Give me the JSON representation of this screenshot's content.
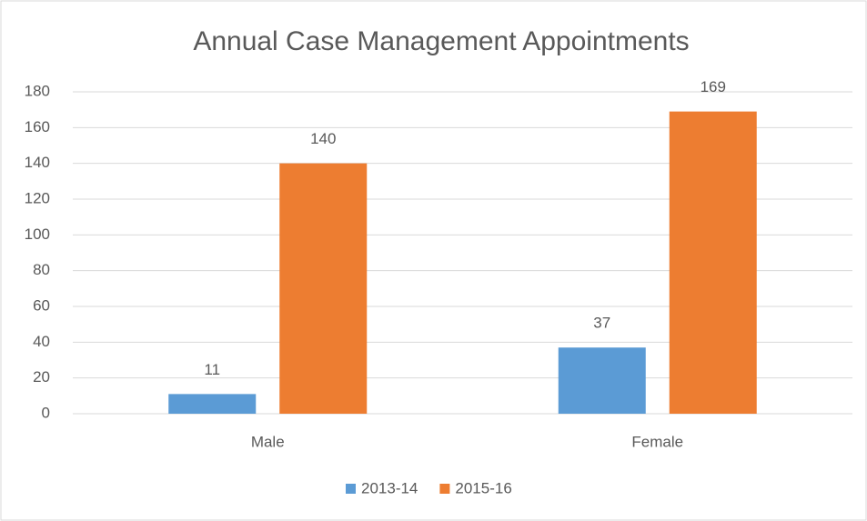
{
  "chart_data": {
    "type": "bar",
    "title": "Annual Case Management Appointments",
    "categories": [
      "Male",
      "Female"
    ],
    "series": [
      {
        "name": "2013-14",
        "color": "#5b9bd5",
        "values": [
          11,
          37
        ]
      },
      {
        "name": "2015-16",
        "color": "#ed7d31",
        "values": [
          140,
          169
        ]
      }
    ],
    "ylim": [
      0,
      180
    ],
    "yticks": [
      0,
      20,
      40,
      60,
      80,
      100,
      120,
      140,
      160,
      180
    ],
    "grid": true,
    "legend": "bottom"
  }
}
